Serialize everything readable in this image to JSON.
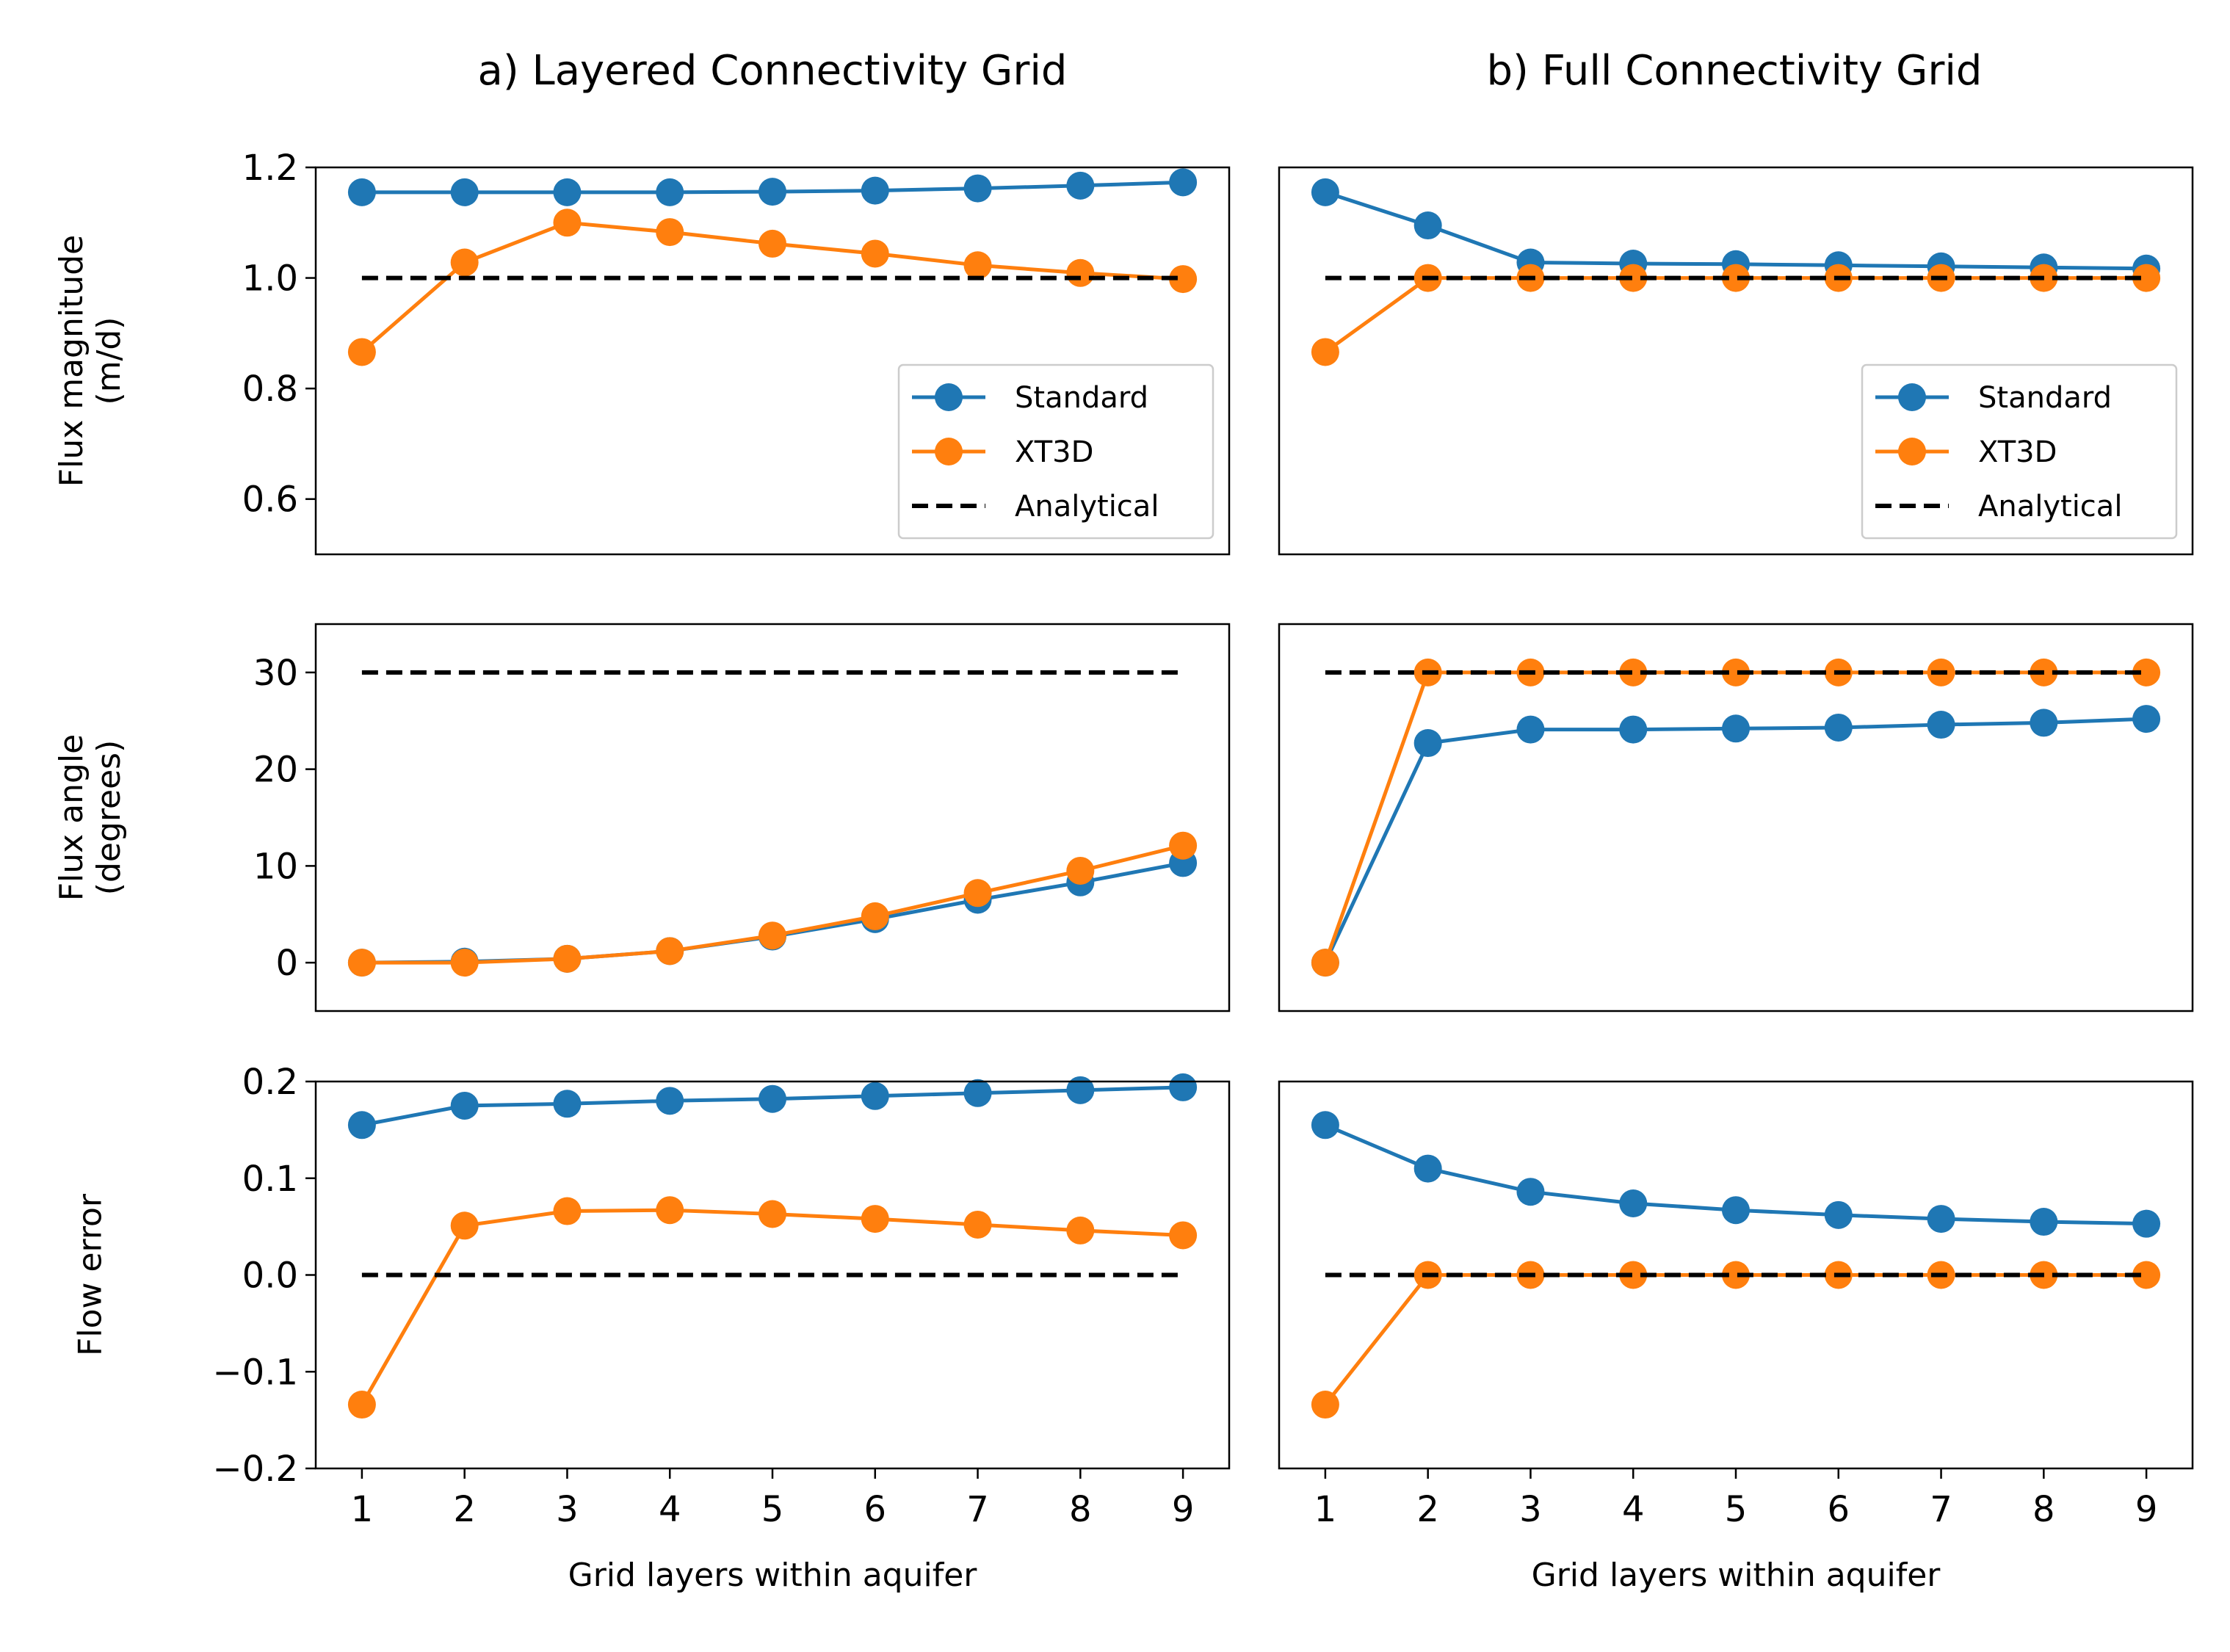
{
  "colors": {
    "Standard": "#1f77b4",
    "XT3D": "#ff7f0e",
    "Analytical": "#000000"
  },
  "chart_data": {
    "type": "line",
    "column_titles": [
      "a) Layered Connectivity Grid",
      "b) Full Connectivity Grid"
    ],
    "xlabel": "Grid layers within aquifer",
    "x": [
      1,
      2,
      3,
      4,
      5,
      6,
      7,
      8,
      9
    ],
    "xticks": [
      "1",
      "2",
      "3",
      "4",
      "5",
      "6",
      "7",
      "8",
      "9"
    ],
    "xlim": [
      0.55,
      9.45
    ],
    "legend": {
      "entries": [
        "Standard",
        "XT3D",
        "Analytical"
      ],
      "placement": "lower right",
      "shown_in_row": 0
    },
    "rows": [
      {
        "ylabel": [
          "Flux magnitude",
          "(m/d)"
        ],
        "ylim": [
          0.5,
          1.2
        ],
        "yticks": [
          0.6,
          0.8,
          1.0,
          1.2
        ],
        "ytick_labels": [
          "0.6",
          "0.8",
          "1.0",
          "1.2"
        ]
      },
      {
        "ylabel": [
          "Flux angle",
          "(degrees)"
        ],
        "ylim": [
          -5,
          35
        ],
        "yticks": [
          0,
          10,
          20,
          30
        ],
        "ytick_labels": [
          "0",
          "10",
          "20",
          "30"
        ]
      },
      {
        "ylabel": [
          "Flow error"
        ],
        "ylim": [
          -0.2,
          0.2
        ],
        "yticks": [
          -0.2,
          -0.1,
          0.0,
          0.1,
          0.2
        ],
        "ytick_labels": [
          "−0.2",
          "−0.1",
          "0.0",
          "0.1",
          "0.2"
        ]
      }
    ],
    "panels": [
      {
        "row": 0,
        "col": 0,
        "series": [
          {
            "name": "Standard",
            "values": [
              1.155,
              1.155,
              1.155,
              1.155,
              1.156,
              1.158,
              1.162,
              1.167,
              1.173
            ]
          },
          {
            "name": "XT3D",
            "values": [
              0.866,
              1.028,
              1.1,
              1.083,
              1.062,
              1.044,
              1.023,
              1.009,
              0.998
            ]
          },
          {
            "name": "Analytical",
            "values": [
              1.0,
              1.0,
              1.0,
              1.0,
              1.0,
              1.0,
              1.0,
              1.0,
              1.0
            ]
          }
        ]
      },
      {
        "row": 0,
        "col": 1,
        "series": [
          {
            "name": "Standard",
            "values": [
              1.155,
              1.095,
              1.028,
              1.026,
              1.025,
              1.023,
              1.021,
              1.019,
              1.017
            ]
          },
          {
            "name": "XT3D",
            "values": [
              0.866,
              1.0,
              1.0,
              1.0,
              1.0,
              1.0,
              1.0,
              1.0,
              1.0
            ]
          },
          {
            "name": "Analytical",
            "values": [
              1.0,
              1.0,
              1.0,
              1.0,
              1.0,
              1.0,
              1.0,
              1.0,
              1.0
            ]
          }
        ]
      },
      {
        "row": 1,
        "col": 0,
        "series": [
          {
            "name": "Standard",
            "values": [
              0.0,
              0.1,
              0.4,
              1.2,
              2.7,
              4.5,
              6.5,
              8.3,
              10.3
            ]
          },
          {
            "name": "XT3D",
            "values": [
              0.0,
              0.0,
              0.4,
              1.2,
              2.8,
              4.8,
              7.2,
              9.5,
              12.1
            ]
          },
          {
            "name": "Analytical",
            "values": [
              30,
              30,
              30,
              30,
              30,
              30,
              30,
              30,
              30
            ]
          }
        ]
      },
      {
        "row": 1,
        "col": 1,
        "series": [
          {
            "name": "Standard",
            "values": [
              0.0,
              22.7,
              24.1,
              24.1,
              24.2,
              24.3,
              24.6,
              24.8,
              25.2
            ]
          },
          {
            "name": "XT3D",
            "values": [
              0.0,
              30,
              30,
              30,
              30,
              30,
              30,
              30,
              30
            ]
          },
          {
            "name": "Analytical",
            "values": [
              30,
              30,
              30,
              30,
              30,
              30,
              30,
              30,
              30
            ]
          }
        ]
      },
      {
        "row": 2,
        "col": 0,
        "series": [
          {
            "name": "Standard",
            "values": [
              0.155,
              0.175,
              0.177,
              0.18,
              0.182,
              0.185,
              0.188,
              0.191,
              0.194
            ]
          },
          {
            "name": "XT3D",
            "values": [
              -0.134,
              0.051,
              0.066,
              0.067,
              0.063,
              0.058,
              0.052,
              0.046,
              0.041
            ]
          },
          {
            "name": "Analytical",
            "values": [
              0,
              0,
              0,
              0,
              0,
              0,
              0,
              0,
              0
            ]
          }
        ]
      },
      {
        "row": 2,
        "col": 1,
        "series": [
          {
            "name": "Standard",
            "values": [
              0.155,
              0.11,
              0.086,
              0.074,
              0.067,
              0.062,
              0.058,
              0.055,
              0.053
            ]
          },
          {
            "name": "XT3D",
            "values": [
              -0.134,
              0.0,
              0.0,
              0.0,
              0.0,
              0.0,
              0.0,
              0.0,
              0.0
            ]
          },
          {
            "name": "Analytical",
            "values": [
              0,
              0,
              0,
              0,
              0,
              0,
              0,
              0,
              0
            ]
          }
        ]
      }
    ]
  }
}
